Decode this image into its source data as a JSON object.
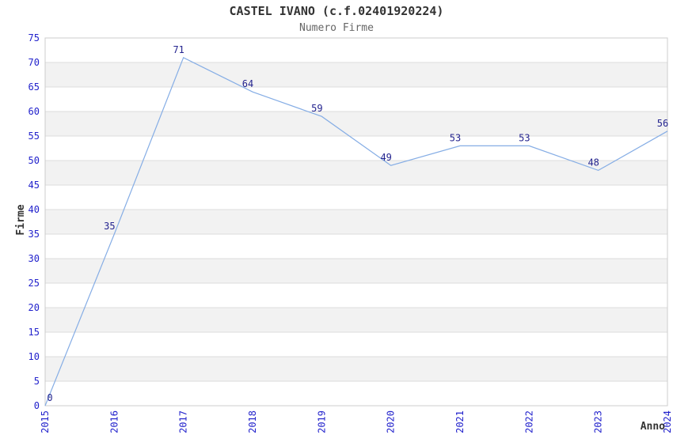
{
  "chart_data": {
    "type": "line",
    "title": "CASTEL IVANO (c.f.02401920224)",
    "subtitle": "Numero Firme",
    "xlabel": "Anno",
    "ylabel": "Firme",
    "x": [
      "2015",
      "2016",
      "2017",
      "2018",
      "2019",
      "2020",
      "2021",
      "2022",
      "2023",
      "2024"
    ],
    "values": [
      0,
      35,
      71,
      64,
      59,
      49,
      53,
      53,
      48,
      56
    ],
    "ylim": [
      0,
      75
    ],
    "ytick_step": 5,
    "grid": "horizontal",
    "alternating_bands": true,
    "legend_position": "none",
    "colors": {
      "line": "#85ade5",
      "tick_label": "#2222cc",
      "data_label": "#24248f",
      "band": "#f2f2f2",
      "gridline": "#dcdcdc",
      "plot_border": "#cccccc",
      "title": "#333333",
      "subtitle": "#666666",
      "axis_name": "#333333",
      "background": "#ffffff"
    }
  }
}
